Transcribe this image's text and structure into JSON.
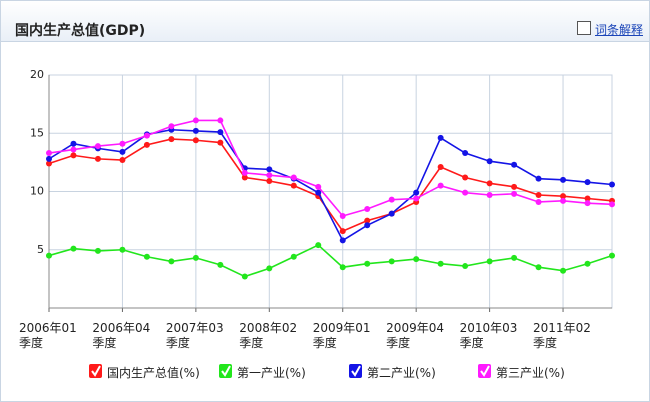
{
  "header": {
    "title": "国内生产总值(GDP)",
    "link": "词条解释"
  },
  "chart_data": {
    "type": "line",
    "categories": [
      "2006年01季度",
      null,
      null,
      "2006年04季度",
      null,
      null,
      "2007年03季度",
      null,
      null,
      "2008年02季度",
      null,
      null,
      "2009年01季度",
      null,
      null,
      "2009年04季度",
      null,
      null,
      "2010年03季度",
      null,
      null,
      "2011年02季度",
      null,
      null
    ],
    "series": [
      {
        "name": "国内生产总值(%)",
        "color": "#ff1a1a",
        "values": [
          12.4,
          13.1,
          12.8,
          12.7,
          14.0,
          14.5,
          14.4,
          14.2,
          11.2,
          10.9,
          10.5,
          9.6,
          6.6,
          7.5,
          8.1,
          9.1,
          12.1,
          11.2,
          10.7,
          10.4,
          9.7,
          9.6,
          9.4,
          9.2
        ]
      },
      {
        "name": "第一产业(%)",
        "color": "#22e61c",
        "values": [
          4.5,
          5.1,
          4.9,
          5.0,
          4.4,
          4.0,
          4.3,
          3.7,
          2.7,
          3.4,
          4.4,
          5.4,
          3.5,
          3.8,
          4.0,
          4.2,
          3.8,
          3.6,
          4.0,
          4.3,
          3.5,
          3.2,
          3.8,
          4.5
        ]
      },
      {
        "name": "第二产业(%)",
        "color": "#1414e6",
        "values": [
          12.8,
          14.1,
          13.7,
          13.4,
          14.9,
          15.3,
          15.2,
          15.1,
          12.0,
          11.9,
          11.1,
          9.9,
          5.8,
          7.1,
          8.1,
          9.9,
          14.6,
          13.3,
          12.6,
          12.3,
          11.1,
          11.0,
          10.8,
          10.6
        ]
      },
      {
        "name": "第三产业(%)",
        "color": "#ff1aff",
        "values": [
          13.3,
          13.6,
          13.9,
          14.1,
          14.8,
          15.6,
          16.1,
          16.1,
          11.6,
          11.4,
          11.2,
          10.4,
          7.9,
          8.5,
          9.3,
          9.4,
          10.5,
          9.9,
          9.7,
          9.8,
          9.1,
          9.2,
          9.0,
          8.9
        ]
      }
    ],
    "ylim": [
      0,
      20
    ],
    "yticks": [
      5,
      10,
      15,
      20
    ],
    "grid": true
  }
}
